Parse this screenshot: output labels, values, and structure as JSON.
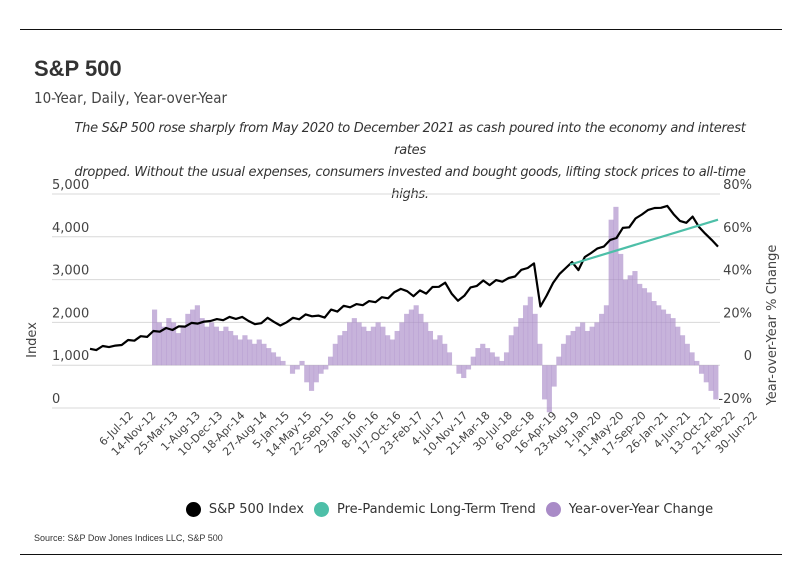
{
  "header": {
    "title": "S&P 500",
    "subtitle": "10-Year, Daily, Year-over-Year",
    "description_line1": "The S&P 500 rose sharply from May 2020 to December 2021 as cash poured into the economy and interest rates",
    "description_line2": "dropped. Without the usual expenses, consumers invested and bought goods, lifting stock prices to all-time highs."
  },
  "legend": [
    {
      "label": "S&P 500 Index",
      "color": "#000000"
    },
    {
      "label": "Pre-Pandemic Long-Term Trend",
      "color": "#4dbfa8"
    },
    {
      "label": "Year-over-Year Change",
      "color": "#a98bc7"
    }
  ],
  "source": "Source:  S&P Dow Jones Indices LLC, S&P 500",
  "chart_data": {
    "type": "line",
    "title": "S&P 500",
    "subtitle": "10-Year, Daily, Year-over-Year",
    "xlabel": "",
    "ylabel": "Index",
    "y2label": "Year-over-Year % Change",
    "ylim": [
      0,
      5000
    ],
    "y2lim": [
      -20,
      80
    ],
    "yticks": [
      "0",
      "1,000",
      "2,000",
      "3,000",
      "4,000",
      "5,000"
    ],
    "y2ticks": [
      "-20%",
      "0",
      "20%",
      "40%",
      "60%",
      "80%"
    ],
    "grid": true,
    "legend_position": "bottom",
    "x_ticks": [
      "6-Jul-12",
      "14-Nov-12",
      "25-Mar-13",
      "1-Aug-13",
      "10-Dec-13",
      "18-Apr-14",
      "27-Aug-14",
      "5-Jan-15",
      "14-May-15",
      "22-Sep-15",
      "29-Jan-16",
      "8-Jun-16",
      "17-Oct-16",
      "23-Feb-17",
      "4-Jul-17",
      "10-Nov-17",
      "21-Mar-18",
      "30-Jul-18",
      "6-Dec-18",
      "16-Apr-19",
      "23-Aug-19",
      "1-Jan-20",
      "11-May-20",
      "17-Sep-20",
      "26-Jan-21",
      "4-Jun-21",
      "13-Oct-21",
      "21-Feb-22",
      "30-Jun-22"
    ],
    "series": [
      {
        "name": "S&P 500 Index",
        "axis": "left",
        "kind": "line",
        "color": "#000000",
        "values": [
          1355,
          1380,
          1420,
          1450,
          1430,
          1500,
          1560,
          1600,
          1650,
          1690,
          1770,
          1810,
          1840,
          1850,
          1880,
          1930,
          1960,
          2000,
          1990,
          2060,
          2050,
          2080,
          2100,
          2110,
          2100,
          2060,
          1930,
          2010,
          2080,
          2040,
          1900,
          2030,
          2080,
          2100,
          2160,
          2170,
          2130,
          2140,
          2270,
          2280,
          2360,
          2380,
          2400,
          2430,
          2470,
          2500,
          2560,
          2590,
          2680,
          2810,
          2700,
          2640,
          2720,
          2700,
          2800,
          2860,
          2900,
          2700,
          2480,
          2650,
          2790,
          2880,
          2950,
          2900,
          2960,
          2980,
          3010,
          3100,
          3200,
          3300,
          3350,
          2400,
          2600,
          2950,
          3100,
          3300,
          3380,
          3250,
          3500,
          3650,
          3700,
          3800,
          3900,
          4000,
          4180,
          4250,
          4400,
          4550,
          4600,
          4700,
          4650,
          4750,
          4500,
          4400,
          4300,
          4500,
          4200,
          4100,
          3900,
          3800
        ]
      },
      {
        "name": "Pre-Pandemic Long-Term Trend",
        "axis": "left",
        "kind": "line",
        "color": "#4dbfa8",
        "x_range": [
          "Feb-20",
          "Jun-22"
        ],
        "values": [
          3350,
          4400
        ]
      },
      {
        "name": "Year-over-Year Change",
        "axis": "right",
        "kind": "bar",
        "color": "#a98bc7",
        "x_start": "Jul-13",
        "values": [
          26,
          20,
          18,
          22,
          20,
          15,
          18,
          24,
          26,
          28,
          22,
          18,
          20,
          18,
          16,
          18,
          16,
          14,
          12,
          14,
          12,
          10,
          12,
          10,
          8,
          6,
          4,
          2,
          0,
          -4,
          -2,
          2,
          -8,
          -12,
          -8,
          -4,
          -2,
          4,
          10,
          14,
          16,
          20,
          22,
          20,
          18,
          16,
          18,
          20,
          18,
          14,
          12,
          16,
          20,
          24,
          26,
          28,
          24,
          20,
          16,
          12,
          14,
          10,
          6,
          0,
          -4,
          -6,
          -2,
          4,
          8,
          10,
          8,
          6,
          4,
          2,
          6,
          14,
          18,
          22,
          28,
          32,
          24,
          10,
          -16,
          -22,
          -10,
          4,
          10,
          14,
          16,
          18,
          20,
          16,
          18,
          20,
          24,
          28,
          68,
          74,
          52,
          40,
          42,
          44,
          38,
          36,
          34,
          30,
          28,
          26,
          24,
          22,
          18,
          14,
          10,
          6,
          2,
          -4,
          -8,
          -12,
          -16
        ]
      }
    ]
  }
}
